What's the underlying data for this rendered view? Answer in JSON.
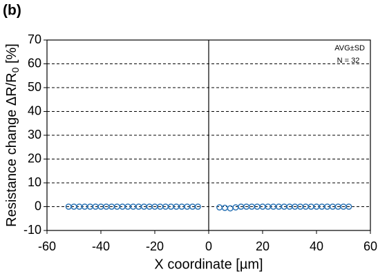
{
  "chart_data": {
    "type": "scatter",
    "panel_label": "(b)",
    "xlabel": "X coordinate [µm]",
    "ylabel": {
      "text": "Resistance change ΔR/R",
      "subscript": "0",
      "unit": " [%]"
    },
    "annotations": [
      "AVG±SD",
      "N = 32"
    ],
    "x": [
      -52,
      -50,
      -48,
      -46,
      -44,
      -42,
      -40,
      -38,
      -36,
      -34,
      -32,
      -30,
      -28,
      -26,
      -24,
      -22,
      -20,
      -18,
      -16,
      -14,
      -12,
      -10,
      -8,
      -6,
      -4,
      4,
      6,
      8,
      10,
      12,
      14,
      16,
      18,
      20,
      22,
      24,
      26,
      28,
      30,
      32,
      34,
      36,
      38,
      40,
      42,
      44,
      46,
      48,
      50,
      52
    ],
    "values": [
      0,
      0,
      0,
      0,
      0,
      0,
      0,
      0,
      0,
      0,
      0,
      0,
      0,
      0,
      0,
      0,
      0,
      0,
      0,
      0,
      0,
      0,
      0,
      0,
      0,
      -0.3,
      -0.5,
      -0.7,
      -0.3,
      0,
      0,
      0,
      0,
      0,
      0,
      0,
      0,
      0,
      0,
      0,
      0,
      0,
      0,
      0,
      0,
      0,
      0,
      0,
      0,
      0
    ],
    "color": "#2e75b6",
    "xlim": [
      -60,
      60
    ],
    "xticks": [
      -60,
      -40,
      -20,
      0,
      20,
      40,
      60
    ],
    "ylim": [
      -10,
      70
    ],
    "yticks": [
      -10,
      0,
      10,
      20,
      30,
      40,
      50,
      60,
      70
    ],
    "vline": 0,
    "grid": true
  }
}
